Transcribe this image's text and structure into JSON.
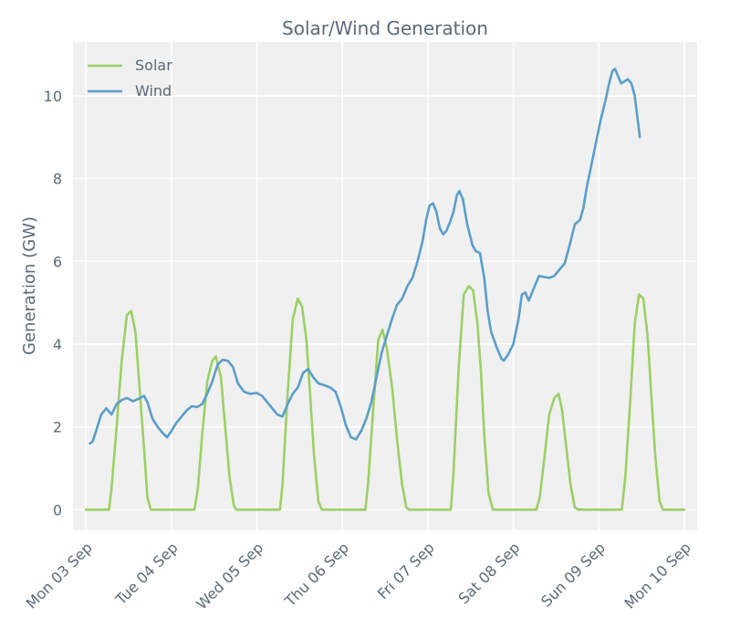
{
  "chart_data": {
    "type": "line",
    "title": "Solar/Wind Generation",
    "xlabel": "",
    "ylabel": "Generation (GW)",
    "ylim": [
      -0.5,
      11.3
    ],
    "xlim": [
      -0.15,
      7.15
    ],
    "yticks": [
      0,
      2,
      4,
      6,
      8,
      10
    ],
    "xtick_labels": [
      "Mon 03 Sep",
      "Tue 04 Sep",
      "Wed 05 Sep",
      "Thu 06 Sep",
      "Fri 07 Sep",
      "Sat 08 Sep",
      "Sun 09 Sep",
      "Mon 10 Sep"
    ],
    "grid": true,
    "legend_position": "top-left",
    "series": [
      {
        "name": "Solar",
        "color": "#9ccf66",
        "points": [
          [
            0.0,
            0
          ],
          [
            0.27,
            0
          ],
          [
            0.3,
            0.5
          ],
          [
            0.36,
            2.0
          ],
          [
            0.42,
            3.6
          ],
          [
            0.48,
            4.7
          ],
          [
            0.53,
            4.8
          ],
          [
            0.58,
            4.3
          ],
          [
            0.62,
            3.2
          ],
          [
            0.68,
            1.5
          ],
          [
            0.72,
            0.3
          ],
          [
            0.76,
            0
          ],
          [
            1.0,
            0
          ],
          [
            1.27,
            0
          ],
          [
            1.31,
            0.5
          ],
          [
            1.36,
            1.8
          ],
          [
            1.42,
            3.1
          ],
          [
            1.48,
            3.6
          ],
          [
            1.52,
            3.7
          ],
          [
            1.58,
            3.2
          ],
          [
            1.63,
            2.0
          ],
          [
            1.68,
            0.8
          ],
          [
            1.73,
            0.1
          ],
          [
            1.76,
            0
          ],
          [
            2.0,
            0
          ],
          [
            2.27,
            0
          ],
          [
            2.3,
            0.6
          ],
          [
            2.36,
            2.8
          ],
          [
            2.42,
            4.6
          ],
          [
            2.48,
            5.1
          ],
          [
            2.53,
            4.9
          ],
          [
            2.58,
            4.1
          ],
          [
            2.62,
            2.9
          ],
          [
            2.67,
            1.3
          ],
          [
            2.72,
            0.2
          ],
          [
            2.76,
            0
          ],
          [
            3.0,
            0
          ],
          [
            3.27,
            0
          ],
          [
            3.3,
            0.6
          ],
          [
            3.36,
            2.4
          ],
          [
            3.42,
            4.1
          ],
          [
            3.47,
            4.35
          ],
          [
            3.52,
            3.9
          ],
          [
            3.58,
            3.0
          ],
          [
            3.64,
            1.7
          ],
          [
            3.7,
            0.6
          ],
          [
            3.75,
            0.05
          ],
          [
            3.78,
            0
          ],
          [
            4.0,
            0
          ],
          [
            4.27,
            0
          ],
          [
            4.3,
            0.9
          ],
          [
            4.36,
            3.4
          ],
          [
            4.42,
            5.2
          ],
          [
            4.48,
            5.4
          ],
          [
            4.53,
            5.3
          ],
          [
            4.58,
            4.5
          ],
          [
            4.62,
            3.4
          ],
          [
            4.66,
            1.8
          ],
          [
            4.71,
            0.4
          ],
          [
            4.76,
            0
          ],
          [
            5.0,
            0
          ],
          [
            5.27,
            0
          ],
          [
            5.31,
            0.3
          ],
          [
            5.36,
            1.2
          ],
          [
            5.42,
            2.3
          ],
          [
            5.48,
            2.7
          ],
          [
            5.53,
            2.8
          ],
          [
            5.57,
            2.4
          ],
          [
            5.62,
            1.5
          ],
          [
            5.67,
            0.6
          ],
          [
            5.72,
            0.05
          ],
          [
            5.76,
            0
          ],
          [
            6.0,
            0
          ],
          [
            6.27,
            0
          ],
          [
            6.31,
            0.8
          ],
          [
            6.37,
            2.7
          ],
          [
            6.42,
            4.5
          ],
          [
            6.47,
            5.2
          ],
          [
            6.52,
            5.1
          ],
          [
            6.57,
            4.2
          ],
          [
            6.61,
            2.9
          ],
          [
            6.66,
            1.3
          ],
          [
            6.71,
            0.2
          ],
          [
            6.75,
            0
          ],
          [
            7.0,
            0
          ]
        ]
      },
      {
        "name": "Wind",
        "color": "#5a9ec8",
        "points": [
          [
            0.05,
            1.6
          ],
          [
            0.08,
            1.65
          ],
          [
            0.12,
            1.9
          ],
          [
            0.18,
            2.3
          ],
          [
            0.24,
            2.45
          ],
          [
            0.3,
            2.3
          ],
          [
            0.36,
            2.55
          ],
          [
            0.42,
            2.65
          ],
          [
            0.48,
            2.7
          ],
          [
            0.55,
            2.62
          ],
          [
            0.62,
            2.68
          ],
          [
            0.68,
            2.75
          ],
          [
            0.72,
            2.6
          ],
          [
            0.78,
            2.2
          ],
          [
            0.84,
            2.0
          ],
          [
            0.9,
            1.85
          ],
          [
            0.95,
            1.75
          ],
          [
            1.0,
            1.9
          ],
          [
            1.06,
            2.1
          ],
          [
            1.12,
            2.25
          ],
          [
            1.18,
            2.4
          ],
          [
            1.24,
            2.5
          ],
          [
            1.3,
            2.48
          ],
          [
            1.36,
            2.55
          ],
          [
            1.42,
            2.8
          ],
          [
            1.48,
            3.1
          ],
          [
            1.54,
            3.5
          ],
          [
            1.6,
            3.62
          ],
          [
            1.66,
            3.6
          ],
          [
            1.72,
            3.45
          ],
          [
            1.78,
            3.05
          ],
          [
            1.85,
            2.85
          ],
          [
            1.92,
            2.8
          ],
          [
            2.0,
            2.82
          ],
          [
            2.06,
            2.75
          ],
          [
            2.12,
            2.6
          ],
          [
            2.18,
            2.45
          ],
          [
            2.24,
            2.3
          ],
          [
            2.3,
            2.25
          ],
          [
            2.36,
            2.55
          ],
          [
            2.42,
            2.8
          ],
          [
            2.48,
            2.95
          ],
          [
            2.54,
            3.3
          ],
          [
            2.6,
            3.4
          ],
          [
            2.66,
            3.2
          ],
          [
            2.72,
            3.05
          ],
          [
            2.8,
            3.0
          ],
          [
            2.86,
            2.95
          ],
          [
            2.92,
            2.85
          ],
          [
            2.98,
            2.5
          ],
          [
            3.04,
            2.05
          ],
          [
            3.1,
            1.75
          ],
          [
            3.16,
            1.7
          ],
          [
            3.22,
            1.9
          ],
          [
            3.28,
            2.2
          ],
          [
            3.34,
            2.6
          ],
          [
            3.4,
            3.2
          ],
          [
            3.46,
            3.8
          ],
          [
            3.52,
            4.2
          ],
          [
            3.58,
            4.6
          ],
          [
            3.64,
            4.95
          ],
          [
            3.7,
            5.1
          ],
          [
            3.76,
            5.4
          ],
          [
            3.82,
            5.6
          ],
          [
            3.88,
            6.0
          ],
          [
            3.94,
            6.5
          ],
          [
            3.98,
            7.0
          ],
          [
            4.02,
            7.35
          ],
          [
            4.06,
            7.4
          ],
          [
            4.1,
            7.2
          ],
          [
            4.14,
            6.8
          ],
          [
            4.18,
            6.65
          ],
          [
            4.22,
            6.75
          ],
          [
            4.26,
            6.95
          ],
          [
            4.3,
            7.2
          ],
          [
            4.34,
            7.6
          ],
          [
            4.37,
            7.7
          ],
          [
            4.41,
            7.5
          ],
          [
            4.46,
            6.9
          ],
          [
            4.52,
            6.4
          ],
          [
            4.56,
            6.25
          ],
          [
            4.61,
            6.2
          ],
          [
            4.66,
            5.6
          ],
          [
            4.7,
            4.8
          ],
          [
            4.74,
            4.3
          ],
          [
            4.8,
            3.95
          ],
          [
            4.86,
            3.65
          ],
          [
            4.89,
            3.6
          ],
          [
            4.94,
            3.75
          ],
          [
            5.0,
            4.0
          ],
          [
            5.06,
            4.6
          ],
          [
            5.1,
            5.2
          ],
          [
            5.14,
            5.25
          ],
          [
            5.18,
            5.05
          ],
          [
            5.24,
            5.35
          ],
          [
            5.3,
            5.65
          ],
          [
            5.36,
            5.62
          ],
          [
            5.42,
            5.6
          ],
          [
            5.48,
            5.65
          ],
          [
            5.54,
            5.8
          ],
          [
            5.6,
            5.95
          ],
          [
            5.66,
            6.4
          ],
          [
            5.72,
            6.9
          ],
          [
            5.78,
            7.0
          ],
          [
            5.82,
            7.3
          ],
          [
            5.86,
            7.8
          ],
          [
            5.9,
            8.2
          ],
          [
            5.96,
            8.8
          ],
          [
            6.02,
            9.4
          ],
          [
            6.08,
            9.9
          ],
          [
            6.12,
            10.3
          ],
          [
            6.16,
            10.6
          ],
          [
            6.19,
            10.65
          ],
          [
            6.22,
            10.5
          ],
          [
            6.26,
            10.3
          ],
          [
            6.3,
            10.35
          ],
          [
            6.34,
            10.4
          ],
          [
            6.38,
            10.3
          ],
          [
            6.42,
            10.0
          ],
          [
            6.45,
            9.5
          ],
          [
            6.48,
            9.0
          ]
        ]
      }
    ]
  }
}
